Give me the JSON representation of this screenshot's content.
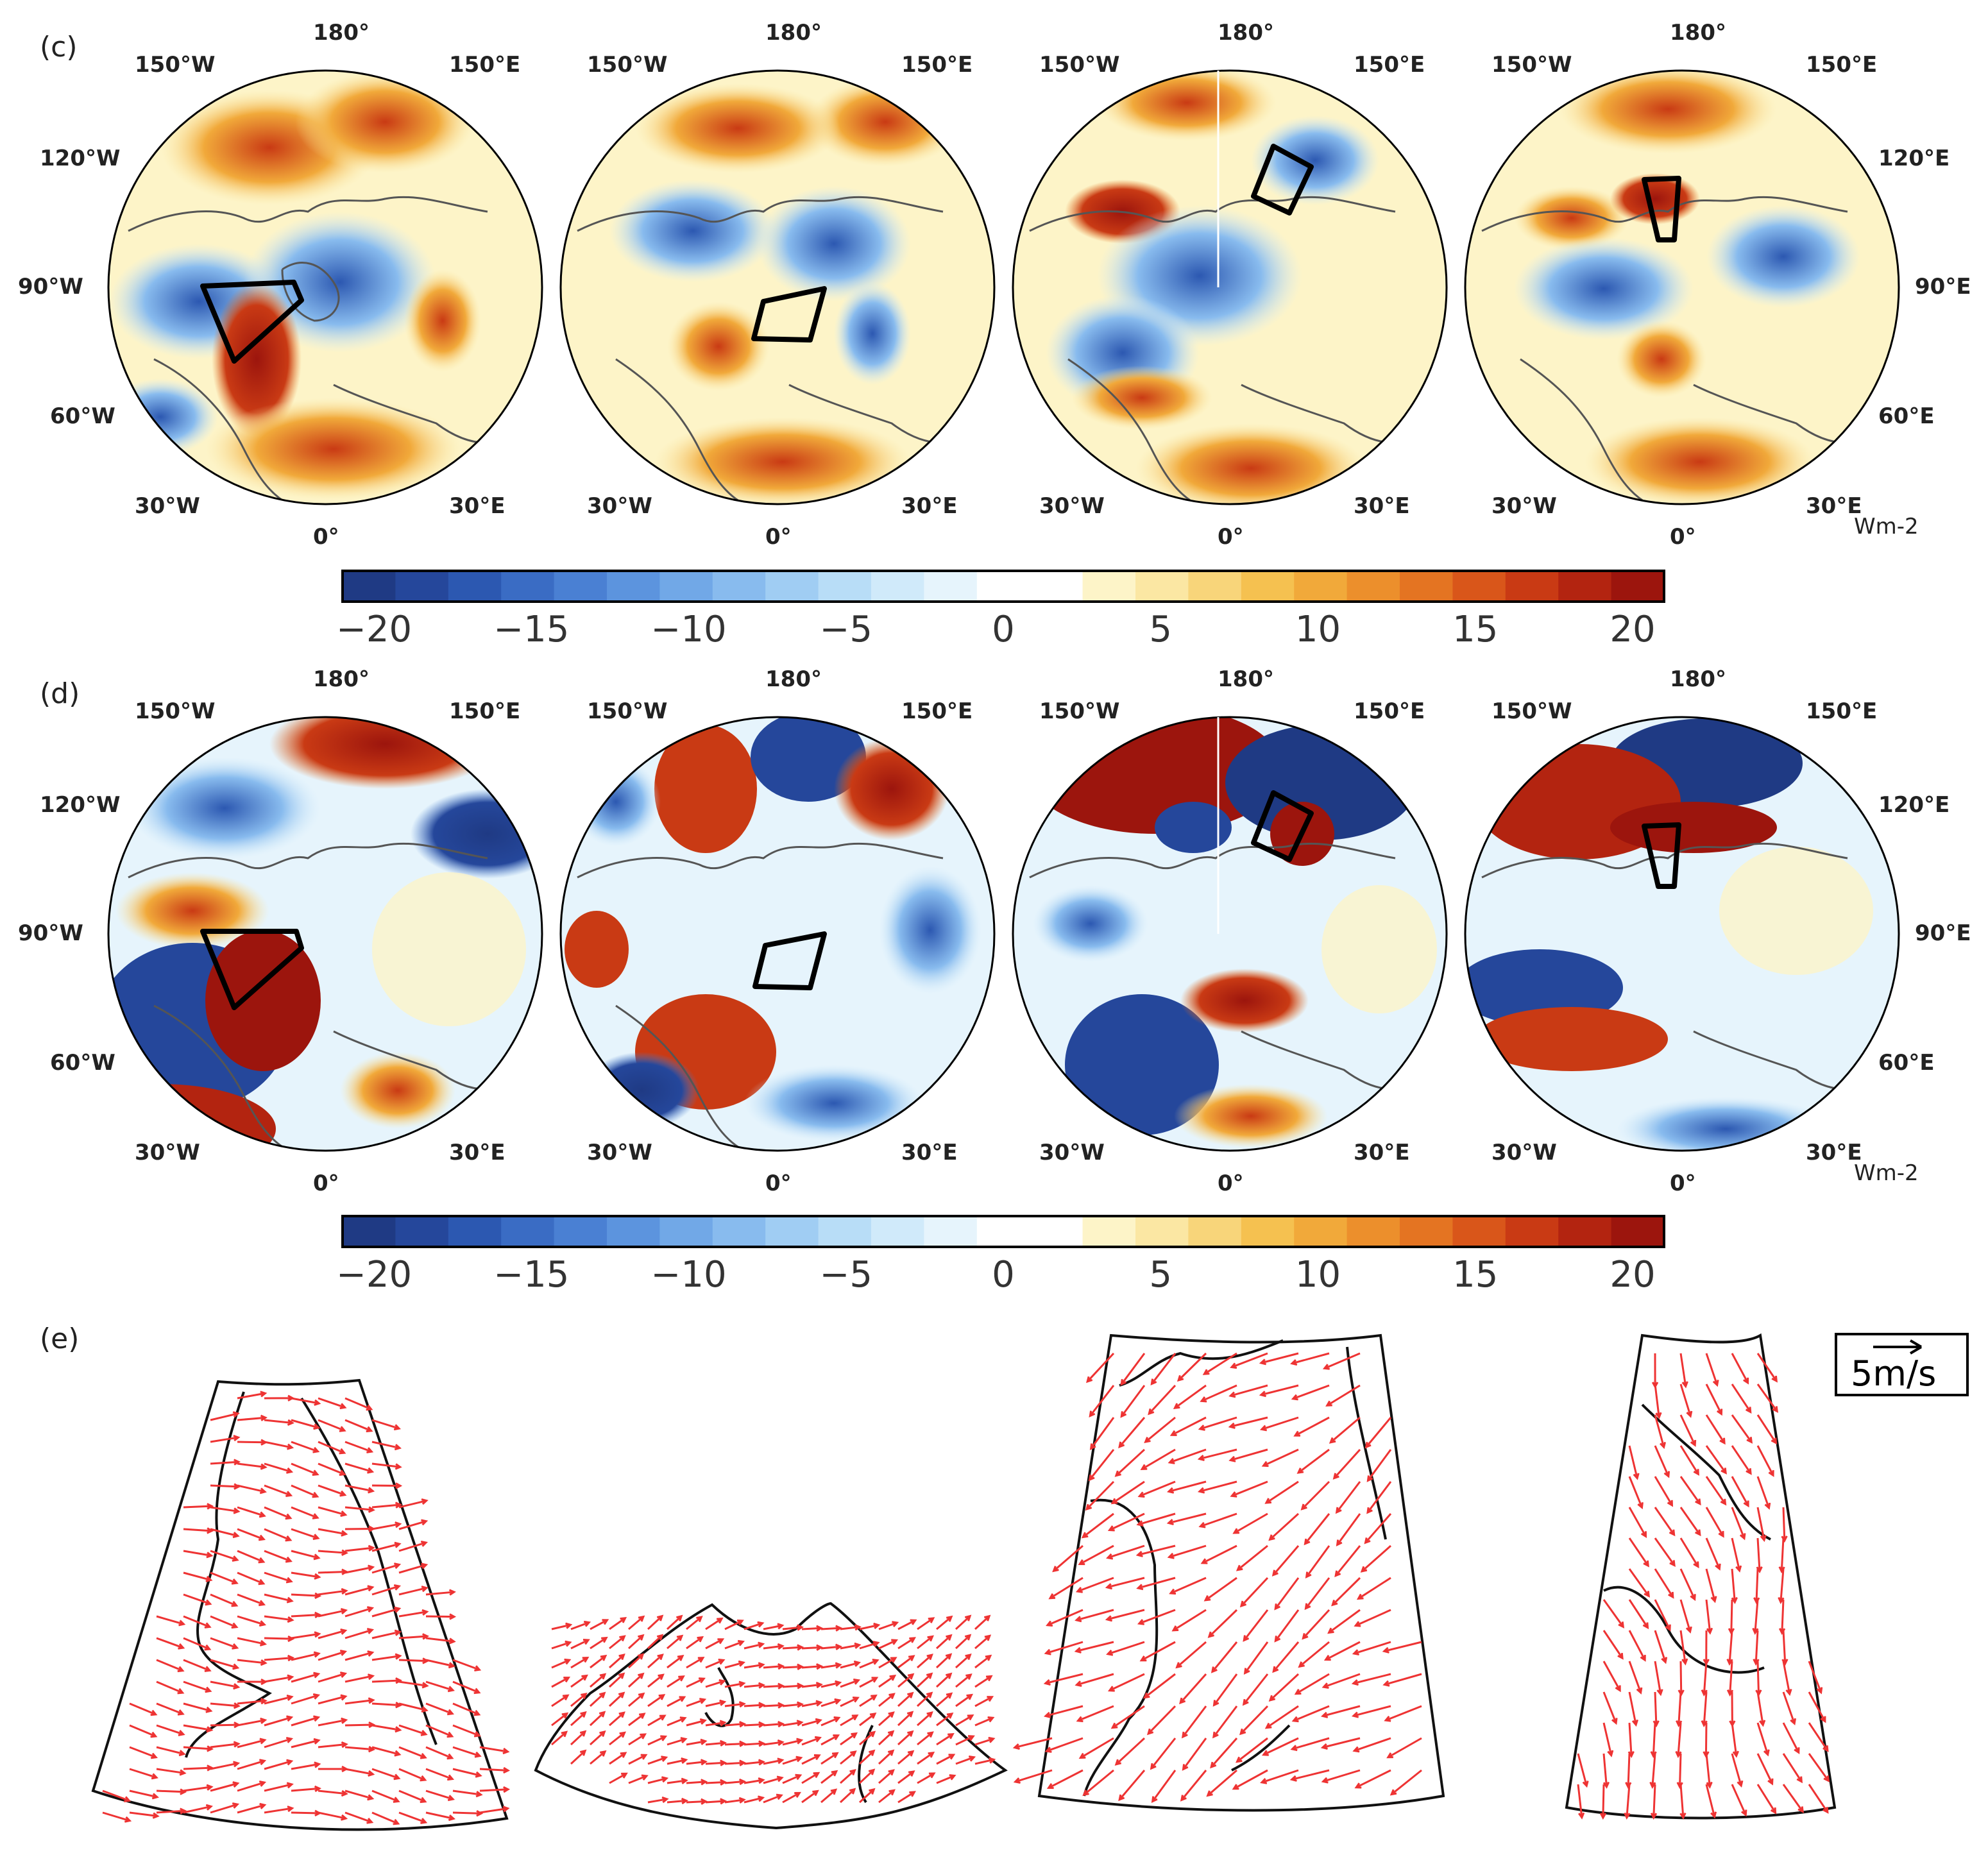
{
  "panels": {
    "c": {
      "label": "(c)",
      "unit": "Wm-2"
    },
    "d": {
      "label": "(d)",
      "unit": "Wm-2"
    },
    "e": {
      "label": "(e)",
      "scale_label": "5m/s"
    }
  },
  "polar_labels": {
    "top": "180°",
    "top_left": "150°W",
    "top_right": "150°E",
    "upper_left": "120°W",
    "upper_right": "120°E",
    "mid_left": "90°W",
    "mid_right": "90°E",
    "lower_left": "60°W",
    "lower_right": "60°E",
    "bottom_left": "30°W",
    "bottom_right": "30°E",
    "bottom": "0°"
  },
  "colorbar": {
    "ticks": [
      "−20",
      "−15",
      "−10",
      "−5",
      "0",
      "5",
      "10",
      "15",
      "20"
    ],
    "min": -21,
    "max": 21,
    "colors": [
      "#1f3a84",
      "#25479b",
      "#2c58b1",
      "#3a6cc4",
      "#4a80d3",
      "#5c94de",
      "#71a8e7",
      "#88bbee",
      "#a0cdf3",
      "#b8ddf7",
      "#d0eafa",
      "#e6f4fc",
      "#ffffff",
      "#ffffff",
      "#fdf4c8",
      "#fbe7a3",
      "#f8d57a",
      "#f5c150",
      "#f1a93a",
      "#ec8f2c",
      "#e47422",
      "#d9561a",
      "#c93a14",
      "#b32410",
      "#9c150d"
    ]
  },
  "colors": {
    "vector": "#ee3333",
    "region_box": "#000000",
    "coastline": "#555555"
  }
}
